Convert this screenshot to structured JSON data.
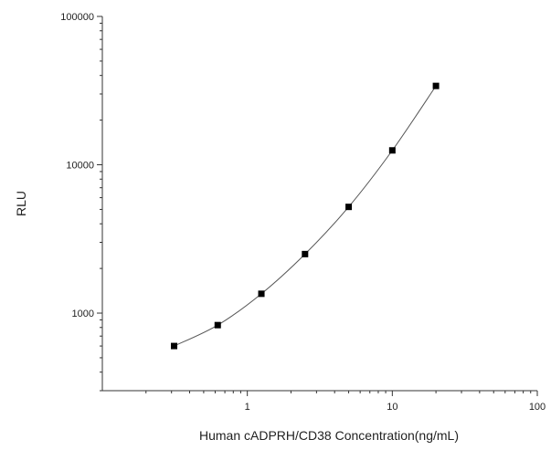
{
  "chart_data": {
    "type": "scatter",
    "title": "",
    "xlabel": "Human cADPRH/CD38 Concentration(ng/mL)",
    "ylabel": "RLU",
    "x_scale": "log",
    "y_scale": "log",
    "xlim": [
      0.1,
      100
    ],
    "ylim": [
      300,
      100000
    ],
    "x_ticks": [
      1,
      10,
      100
    ],
    "x_tick_labels": [
      "1",
      "10",
      "100"
    ],
    "y_ticks": [
      1000,
      10000,
      100000
    ],
    "y_tick_labels": [
      "1000",
      "10000",
      "100000"
    ],
    "grid": false,
    "legend": "none",
    "series": [
      {
        "x": [
          0.3125,
          0.625,
          1.25,
          2.5,
          5,
          10,
          20
        ],
        "y": [
          600,
          830,
          1350,
          2500,
          5200,
          12500,
          34000
        ],
        "marker": "square",
        "fit_line": true
      }
    ],
    "colors": {
      "marker": "#000000",
      "fit": "#555555",
      "axis": "#333333"
    }
  }
}
